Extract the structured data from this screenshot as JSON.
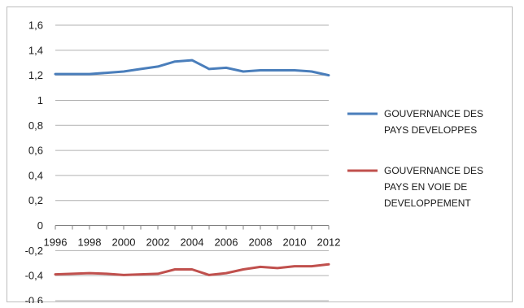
{
  "chart_data": {
    "type": "line",
    "title": "",
    "xlabel": "",
    "ylabel": "",
    "x": [
      "1996",
      "1997",
      "1998",
      "1999",
      "2000",
      "2001",
      "2002",
      "2003",
      "2004",
      "2005",
      "2006",
      "2007",
      "2008",
      "2009",
      "2010",
      "2011",
      "2012"
    ],
    "x_tick_labels": [
      "1996",
      "1998",
      "2000",
      "2002",
      "2004",
      "2006",
      "2008",
      "2010",
      "2012"
    ],
    "y_tick_labels": [
      "1,6",
      "1,4",
      "1,2",
      "1",
      "0,8",
      "0,6",
      "0,4",
      "0,2",
      "0",
      "-0,2",
      "-0,4",
      "-0,6"
    ],
    "ylim": [
      -0.6,
      1.6
    ],
    "y_step": 0.2,
    "grid": true,
    "legend_position": "right",
    "series": [
      {
        "name": "GOUVERNANCE  DES PAYS DEVELOPPES",
        "name_lines": [
          "GOUVERNANCE  DES",
          "PAYS DEVELOPPES"
        ],
        "color": "#4a7ebb",
        "values": [
          1.21,
          1.21,
          1.21,
          1.22,
          1.23,
          1.25,
          1.27,
          1.31,
          1.32,
          1.25,
          1.26,
          1.23,
          1.24,
          1.24,
          1.24,
          1.23,
          1.2
        ]
      },
      {
        "name": "GOUVERNANCE DES PAYS EN VOIE DE DEVELOPPEMENT",
        "name_lines": [
          "GOUVERNANCE DES",
          "PAYS EN VOIE DE",
          "DEVELOPPEMENT"
        ],
        "color": "#c0504d",
        "values": [
          -0.39,
          -0.385,
          -0.38,
          -0.385,
          -0.395,
          -0.39,
          -0.385,
          -0.35,
          -0.35,
          -0.395,
          -0.38,
          -0.35,
          -0.33,
          -0.34,
          -0.325,
          -0.325,
          -0.31
        ]
      }
    ]
  }
}
